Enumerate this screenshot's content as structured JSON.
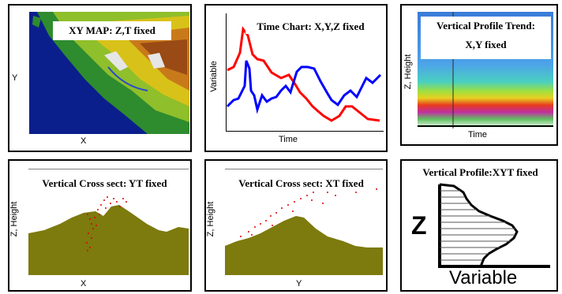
{
  "panels": {
    "xy_map": {
      "title": "XY MAP:  Z,T fixed",
      "xlabel": "X",
      "ylabel": "Y"
    },
    "time_chart": {
      "title": "Time Chart: X,Y,Z fixed",
      "xlabel": "Time",
      "ylabel": "Variable",
      "series_colors": [
        "#ff0000",
        "#0000ff"
      ]
    },
    "vertical_profile_trend": {
      "title_line1": "Vertical Profile Trend:",
      "title_line2": "X,Y fixed",
      "xlabel": "Time",
      "ylabel": "Z, Height"
    },
    "cross_section_yt": {
      "title": "Vertical Cross sect: YT fixed",
      "xlabel": "X",
      "ylabel": "Z, Height"
    },
    "cross_section_xt": {
      "title": "Vertical Cross sect: XT fixed",
      "xlabel": "Y",
      "ylabel": "Z, Height"
    },
    "vertical_profile": {
      "title": "Vertical Profile:XYT fixed",
      "xlabel": "Variable",
      "ylabel": "Z"
    }
  },
  "colors": {
    "terrain": "#7d7a0e",
    "ocean": "#0b1f8c",
    "points": "#e00000"
  }
}
